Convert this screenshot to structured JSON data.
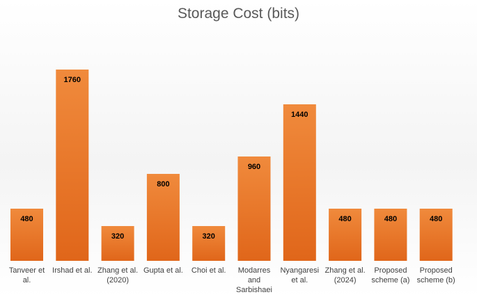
{
  "chart_data": {
    "type": "bar",
    "title": "Storage Cost (bits)",
    "categories": [
      "Tanveer et al.",
      "Irshad et al.",
      "Zhang et al.(2020)",
      "Gupta et al.",
      "Choi et al.",
      "Modarres and Sarbishaei",
      "Nyangaresi et al.",
      "Zhang et al.(2024)",
      "Proposed scheme (a)",
      "Proposed scheme (b)"
    ],
    "values": [
      480,
      1760,
      320,
      800,
      320,
      960,
      1440,
      480,
      480,
      480
    ],
    "color": "#ea7a2a"
  }
}
